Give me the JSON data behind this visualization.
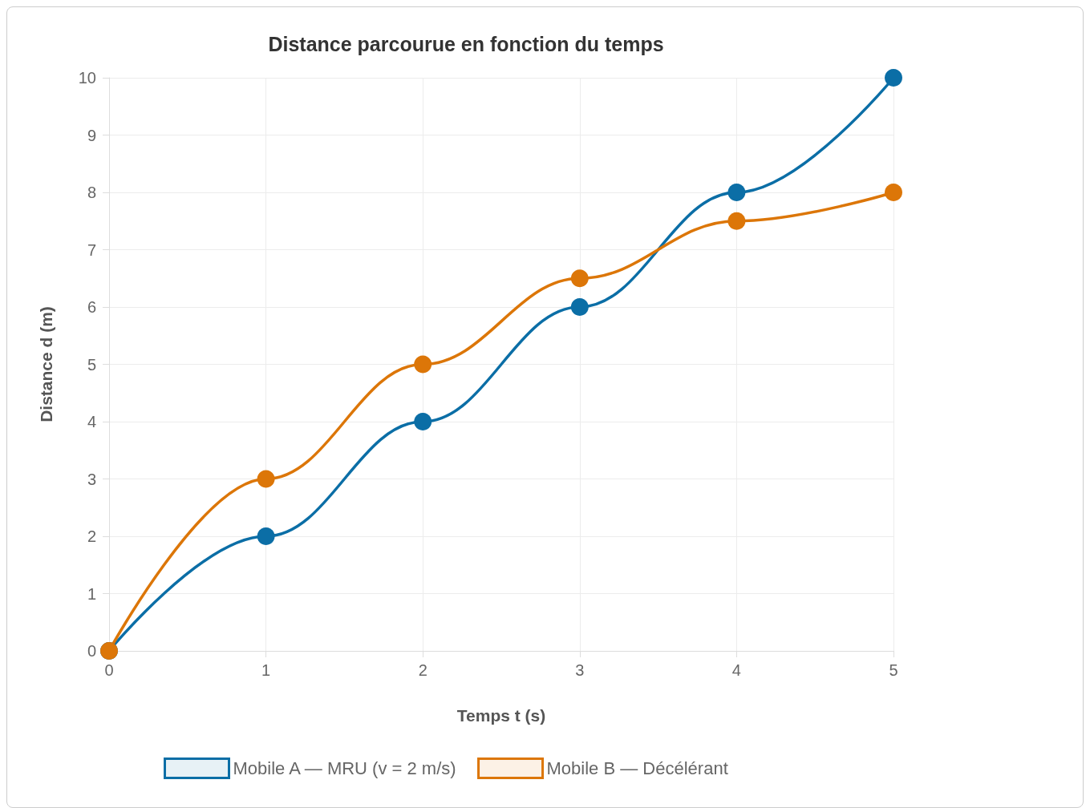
{
  "chart_data": {
    "type": "line",
    "title": "Distance parcourue en fonction du temps",
    "xlabel": "Temps t (s)",
    "ylabel": "Distance d (m)",
    "x": [
      0,
      1,
      2,
      3,
      4,
      5
    ],
    "series": [
      {
        "name": "Mobile A — MRU (v = 2 m/s)",
        "color": "#0b6ea6",
        "values": [
          0,
          2,
          4,
          6,
          8,
          10
        ]
      },
      {
        "name": "Mobile B — Décélérant",
        "color": "#dc7608",
        "values": [
          0,
          3,
          5,
          6.5,
          7.5,
          8
        ]
      }
    ],
    "xlim": [
      0,
      5
    ],
    "xticks": [
      0,
      1,
      2,
      3,
      4,
      5
    ],
    "ylim": [
      0,
      10
    ],
    "yticks": [
      0,
      1,
      2,
      3,
      4,
      5,
      6,
      7,
      8,
      9,
      10
    ],
    "grid": true,
    "legend": "bottom",
    "marker": "circle",
    "line_style": "solid"
  }
}
